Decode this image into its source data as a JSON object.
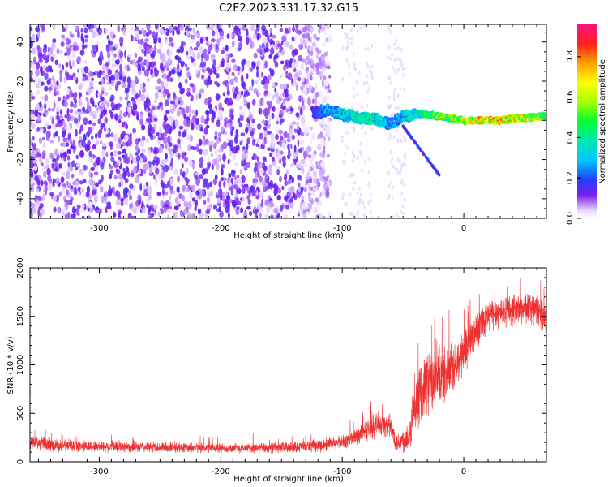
{
  "title": "C2E2.2023.331.17.32.G15",
  "chart_data": [
    {
      "type": "heatmap",
      "xlabel": "Height of straight line (km)",
      "ylabel": "Frequency (Hz)",
      "xlim": [
        -357,
        68
      ],
      "ylim": [
        -50,
        49
      ],
      "xticks": [
        -300,
        -200,
        -100,
        0
      ],
      "yticks": [
        -40,
        -20,
        0,
        20,
        40
      ],
      "colorbar": {
        "label": "Normalized spectral amplitude",
        "range": [
          0.0,
          0.96
        ],
        "ticks": [
          "0.0",
          "0.2",
          "0.4",
          "0.6",
          "0.8"
        ],
        "tick_values": [
          0.0,
          0.2,
          0.4,
          0.6,
          0.8
        ]
      },
      "noise_region": {
        "x": [
          -357,
          -120
        ],
        "freq": [
          -50,
          49
        ],
        "amplitude": 0.15
      },
      "signal_track": [
        {
          "x": -125,
          "freq": 4,
          "amplitude": 0.2
        },
        {
          "x": -110,
          "freq": 5,
          "amplitude": 0.35
        },
        {
          "x": -100,
          "freq": 3,
          "amplitude": 0.4
        },
        {
          "x": -90,
          "freq": 2,
          "amplitude": 0.45
        },
        {
          "x": -80,
          "freq": 1,
          "amplitude": 0.5
        },
        {
          "x": -70,
          "freq": 0,
          "amplitude": 0.45
        },
        {
          "x": -60,
          "freq": -2,
          "amplitude": 0.3
        },
        {
          "x": -50,
          "freq": 2,
          "amplitude": 0.4
        },
        {
          "x": -40,
          "freq": 3,
          "amplitude": 0.45
        },
        {
          "x": -30,
          "freq": 3,
          "amplitude": 0.55
        },
        {
          "x": -20,
          "freq": 2,
          "amplitude": 0.65
        },
        {
          "x": -10,
          "freq": 1,
          "amplitude": 0.7
        },
        {
          "x": 0,
          "freq": 0,
          "amplitude": 0.8
        },
        {
          "x": 10,
          "freq": 0,
          "amplitude": 0.85
        },
        {
          "x": 20,
          "freq": 0,
          "amplitude": 0.88
        },
        {
          "x": 30,
          "freq": 0,
          "amplitude": 0.9
        },
        {
          "x": 40,
          "freq": 1,
          "amplitude": 0.85
        },
        {
          "x": 50,
          "freq": 1,
          "amplitude": 0.8
        },
        {
          "x": 60,
          "freq": 2,
          "amplitude": 0.75
        },
        {
          "x": 68,
          "freq": 2,
          "amplitude": 0.7
        }
      ]
    },
    {
      "type": "line",
      "xlabel": "Height of straight line (km)",
      "ylabel": "SNR (10 * v/v)",
      "xlim": [
        -357,
        68
      ],
      "ylim": [
        0,
        2000
      ],
      "xticks": [
        -300,
        -200,
        -100,
        0
      ],
      "yticks": [
        0,
        500,
        1000,
        1500,
        2000
      ],
      "color": "#ef3030",
      "series": [
        {
          "x": [
            -357,
            -340,
            -320,
            -300,
            -280,
            -260,
            -240,
            -220,
            -200,
            -180,
            -160,
            -140,
            -120,
            -110,
            -100,
            -90,
            -80,
            -70,
            -60,
            -55,
            -50,
            -45,
            -40,
            -35,
            -30,
            -25,
            -20,
            -15,
            -10,
            -5,
            0,
            5,
            10,
            15,
            20,
            25,
            30,
            35,
            40,
            45,
            50,
            55,
            60,
            68
          ],
          "values": [
            200,
            175,
            165,
            160,
            155,
            150,
            148,
            145,
            140,
            140,
            145,
            150,
            165,
            180,
            200,
            250,
            320,
            400,
            350,
            200,
            220,
            300,
            500,
            750,
            850,
            800,
            850,
            900,
            950,
            1000,
            1150,
            1250,
            1350,
            1450,
            1500,
            1530,
            1550,
            1560,
            1570,
            1580,
            1590,
            1580,
            1560,
            1500
          ],
          "spread": [
            90,
            80,
            75,
            70,
            70,
            65,
            65,
            60,
            60,
            60,
            65,
            70,
            75,
            80,
            90,
            110,
            130,
            150,
            140,
            120,
            150,
            220,
            300,
            350,
            400,
            380,
            360,
            340,
            320,
            300,
            280,
            260,
            240,
            220,
            210,
            200,
            200,
            200,
            200,
            200,
            200,
            200,
            200,
            200
          ]
        }
      ]
    }
  ]
}
